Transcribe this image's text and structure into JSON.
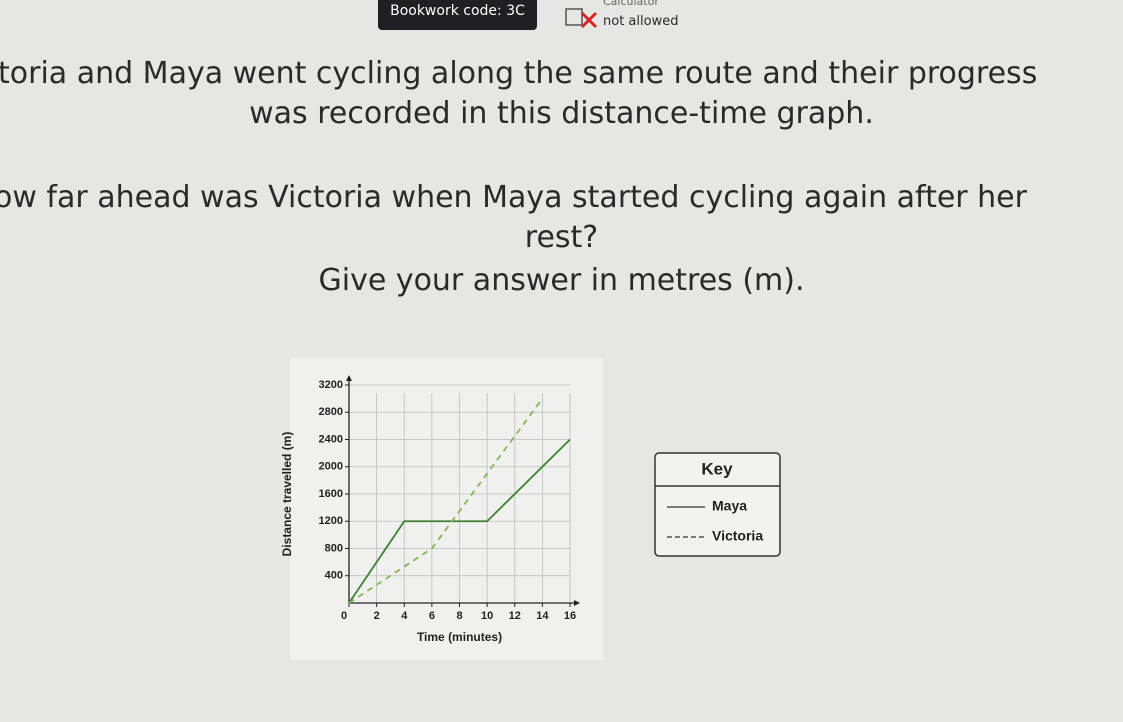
{
  "header": {
    "bookwork": "Bookwork code: 3C",
    "calculator_label": "Calculator",
    "calculator_status": "not allowed"
  },
  "question": {
    "lines": [
      "toria and Maya went cycling along the same route and their progress",
      "was recorded in this distance-time graph."
    ],
    "ask": [
      "ow far ahead was Victoria when Maya started cycling again after her",
      "rest?"
    ],
    "instruction": "Give your answer in metres (m)."
  },
  "chart_data": {
    "type": "line",
    "xlabel": "Time (minutes)",
    "ylabel": "Distance travelled (m)",
    "xlim": [
      0,
      16
    ],
    "xticks": [
      0,
      2,
      4,
      6,
      8,
      10,
      12,
      14,
      16
    ],
    "ylim": [
      0,
      3200
    ],
    "yticks": [
      400,
      800,
      1200,
      1600,
      2000,
      2400,
      2800,
      3200
    ],
    "grid": true,
    "legend_title": "Key",
    "legend": "right",
    "series": [
      {
        "name": "Maya",
        "color": "#3f7f35",
        "style": "solid",
        "x": [
          0,
          4,
          10,
          16
        ],
        "values": [
          0,
          1200,
          1200,
          2400
        ]
      },
      {
        "name": "Victoria",
        "color": "#86b45a",
        "style": "dashed",
        "x": [
          0,
          6,
          14
        ],
        "values": [
          0,
          800,
          3000
        ]
      }
    ]
  }
}
